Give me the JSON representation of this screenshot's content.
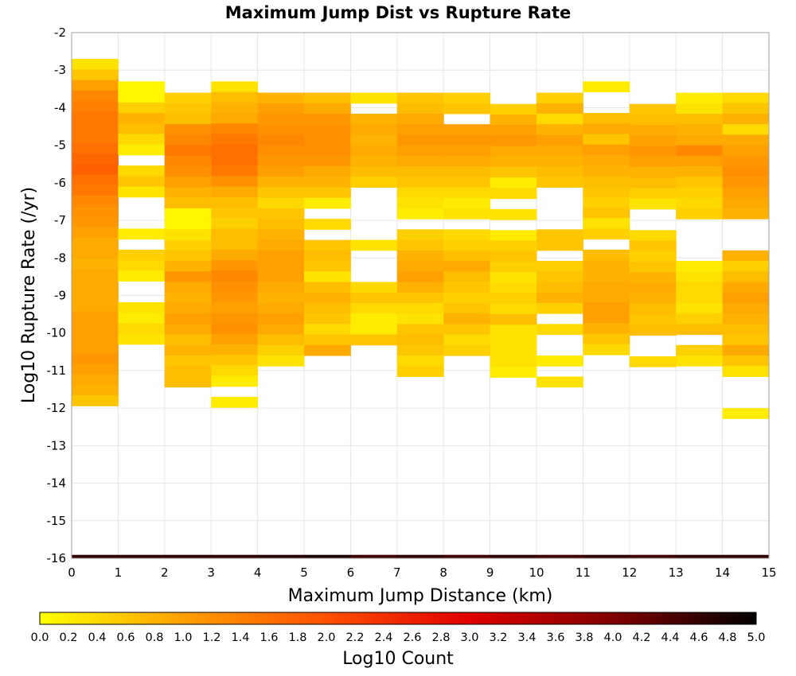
{
  "chart_data": {
    "type": "heatmap",
    "title": "Maximum Jump Dist vs Rupture Rate",
    "xlabel": "Maximum Jump Distance (km)",
    "ylabel": "Log10 Rupture Rate (/yr)",
    "colorbar_label": "Log10 Count",
    "xlim": [
      0,
      15
    ],
    "ylim": [
      -16,
      -2
    ],
    "clim": [
      0,
      5
    ],
    "x_bin_width": 1,
    "y_bin_width": 0.28,
    "x_ticks": [
      "0",
      "1",
      "2",
      "3",
      "4",
      "5",
      "6",
      "7",
      "8",
      "9",
      "10",
      "11",
      "12",
      "13",
      "14",
      "15"
    ],
    "y_ticks": [
      "-2",
      "-3",
      "-4",
      "-5",
      "-6",
      "-7",
      "-8",
      "-9",
      "-10",
      "-11",
      "-12",
      "-13",
      "-14",
      "-15",
      "-16"
    ],
    "colorbar_ticks": [
      "0.0",
      "0.2",
      "0.4",
      "0.6",
      "0.8",
      "1.0",
      "1.2",
      "1.4",
      "1.6",
      "1.8",
      "2.0",
      "2.2",
      "2.4",
      "2.6",
      "2.8",
      "3.0",
      "3.2",
      "3.4",
      "3.6",
      "3.8",
      "4.0",
      "4.2",
      "4.4",
      "4.6",
      "4.8",
      "5.0"
    ],
    "colormap": [
      "#ffff00",
      "#ffa000",
      "#ff5000",
      "#e00000",
      "#800000",
      "#000000"
    ],
    "grid": true,
    "columns": [
      {
        "x": 0.5,
        "y_top": -2.7,
        "values": [
          0.3,
          0.6,
          1.0,
          1.3,
          1.4,
          1.5,
          1.5,
          1.5,
          1.6,
          1.7,
          1.8,
          1.6,
          1.5,
          1.3,
          1.2,
          1.1,
          1.0,
          0.9,
          0.9,
          0.8,
          0.9,
          0.9,
          0.9,
          0.9,
          1.0,
          1.0,
          1.0,
          1.0,
          1.1,
          1.0,
          0.9,
          0.8,
          0.6
        ],
        "row_values_note": ""
      },
      {
        "x": 1.5,
        "y_top": -3.3,
        "values": [
          0.1,
          0.1,
          0.5,
          0.8,
          0.7,
          0.4,
          0.2,
          null,
          0.4,
          0.6,
          0.3,
          null,
          null,
          null,
          0.2,
          null,
          0.5,
          0.4,
          0.2,
          null,
          null,
          0.3,
          0.2,
          0.4,
          0.3
        ]
      },
      {
        "x": 2.5,
        "y_top": -3.6,
        "values": [
          0.5,
          0.6,
          0.7,
          1.2,
          1.3,
          1.5,
          1.3,
          1.2,
          1.0,
          0.8,
          0.7,
          0.1,
          0.1,
          0.3,
          0.5,
          0.6,
          0.8,
          1.1,
          0.9,
          0.8,
          0.9,
          1.0,
          0.9,
          0.7,
          0.8,
          0.6,
          0.7,
          0.7
        ]
      },
      {
        "x": 3.5,
        "y_top": -3.3,
        "values": [
          0.3,
          0.7,
          0.8,
          0.9,
          1.3,
          1.5,
          1.6,
          1.6,
          1.5,
          1.2,
          0.9,
          0.7,
          0.6,
          0.5,
          0.7,
          0.7,
          0.9,
          1.1,
          1.3,
          1.2,
          1.1,
          1.0,
          1.1,
          1.2,
          1.0,
          0.8,
          0.6,
          0.4,
          0.2,
          null,
          0.2
        ]
      },
      {
        "x": 4.5,
        "y_top": -3.6,
        "values": [
          0.8,
          1.0,
          1.1,
          1.2,
          1.3,
          1.2,
          1.1,
          1.0,
          0.8,
          0.6,
          0.4,
          0.6,
          0.7,
          0.8,
          0.9,
          1.0,
          1.0,
          1.0,
          0.9,
          0.8,
          0.9,
          1.0,
          0.9,
          0.7,
          0.5,
          0.3
        ]
      },
      {
        "x": 5.5,
        "y_top": -3.6,
        "values": [
          0.7,
          0.9,
          1.1,
          1.2,
          1.2,
          1.2,
          1.1,
          0.9,
          0.8,
          0.6,
          0.2,
          null,
          0.4,
          null,
          0.6,
          0.7,
          0.6,
          0.3,
          0.7,
          0.8,
          0.7,
          0.6,
          0.4,
          0.6,
          0.9
        ]
      },
      {
        "x": 6.5,
        "y_top": -3.6,
        "values": [
          0.3,
          null,
          0.8,
          0.9,
          0.8,
          0.9,
          0.8,
          0.7,
          0.5,
          null,
          null,
          null,
          null,
          null,
          0.3,
          null,
          null,
          null,
          0.4,
          0.6,
          0.4,
          0.2,
          0.2,
          0.6
        ]
      },
      {
        "x": 7.5,
        "y_top": -3.6,
        "values": [
          0.6,
          0.7,
          0.9,
          1.0,
          1.1,
          1.0,
          0.9,
          0.7,
          0.6,
          0.4,
          0.3,
          0.2,
          null,
          0.5,
          0.6,
          0.8,
          0.9,
          1.0,
          0.8,
          0.6,
          0.4,
          0.3,
          0.6,
          0.7,
          0.6,
          0.4,
          0.5
        ]
      },
      {
        "x": 8.5,
        "y_top": -3.6,
        "values": [
          0.5,
          0.6,
          null,
          1.0,
          1.1,
          1.0,
          0.9,
          0.7,
          0.6,
          0.4,
          0.2,
          0.3,
          null,
          0.4,
          0.5,
          0.7,
          0.9,
          0.7,
          0.6,
          0.5,
          0.6,
          0.8,
          0.6,
          0.4,
          0.5
        ]
      },
      {
        "x": 9.5,
        "y_top": -3.9,
        "values": [
          0.5,
          0.8,
          1.0,
          1.1,
          0.9,
          0.8,
          0.6,
          0.2,
          0.4,
          null,
          0.3,
          null,
          0.2,
          0.5,
          0.6,
          0.5,
          0.3,
          0.4,
          0.5,
          0.4,
          0.7,
          0.3,
          0.3,
          0.3,
          0.3,
          0.2
        ]
      },
      {
        "x": 10.5,
        "y_top": -3.6,
        "values": [
          0.5,
          0.8,
          0.4,
          0.8,
          1.0,
          0.9,
          0.8,
          0.7,
          0.6,
          null,
          null,
          null,
          null,
          0.6,
          0.6,
          null,
          0.5,
          0.6,
          0.7,
          0.8,
          0.5,
          null,
          0.4,
          null,
          null,
          0.2,
          null,
          0.3
        ]
      },
      {
        "x": 11.5,
        "y_top": -3.3,
        "values": [
          0.2,
          null,
          null,
          0.7,
          0.9,
          0.6,
          1.0,
          0.9,
          0.8,
          0.7,
          0.6,
          0.5,
          0.6,
          0.3,
          0.5,
          null,
          0.7,
          0.8,
          0.8,
          0.9,
          0.9,
          1.0,
          1.0,
          0.8,
          0.6,
          0.4
        ]
      },
      {
        "x": 12.5,
        "y_top": -3.9,
        "values": [
          0.6,
          0.7,
          0.9,
          1.0,
          1.1,
          1.0,
          0.8,
          0.7,
          0.5,
          0.3,
          null,
          null,
          0.4,
          0.6,
          0.5,
          0.6,
          0.8,
          0.9,
          0.8,
          0.7,
          0.6,
          0.7,
          null,
          null,
          0.4
        ]
      },
      {
        "x": 13.5,
        "y_top": -3.6,
        "values": [
          0.2,
          0.3,
          0.7,
          0.8,
          0.9,
          1.3,
          1.0,
          0.8,
          0.6,
          0.5,
          0.4,
          0.5,
          null,
          null,
          null,
          null,
          0.2,
          0.3,
          0.4,
          0.4,
          0.3,
          0.5,
          0.7,
          null,
          0.5,
          0.3
        ]
      },
      {
        "x": 14.5,
        "y_top": -3.6,
        "values": [
          0.4,
          0.6,
          0.8,
          0.4,
          0.9,
          1.0,
          1.1,
          1.2,
          1.1,
          1.0,
          0.9,
          0.8,
          null,
          null,
          null,
          0.8,
          0.5,
          0.7,
          0.9,
          1.0,
          0.9,
          0.8,
          0.7,
          0.6,
          0.9,
          0.6,
          0.3,
          null,
          null,
          null,
          0.2
        ]
      }
    ],
    "bottom_row": {
      "y": -15.93,
      "values": [
        4.6,
        4.6,
        4.6,
        4.6,
        4.7,
        4.8,
        4.5,
        4.6,
        4.5,
        4.6,
        4.5,
        4.6,
        4.5,
        4.6,
        4.6
      ]
    }
  }
}
